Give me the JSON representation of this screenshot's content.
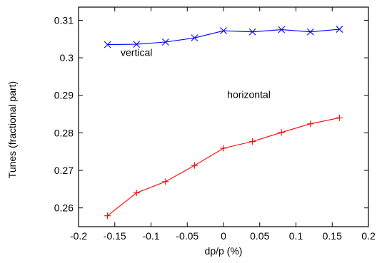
{
  "chart_data": {
    "type": "line",
    "title": "",
    "xlabel": "dp/p (%)",
    "ylabel": "Tunes (fractional part)",
    "xlim": [
      -0.2,
      0.2
    ],
    "ylim": [
      0.255,
      0.3135
    ],
    "grid": false,
    "x_ticks": [
      -0.2,
      -0.15,
      -0.1,
      -0.05,
      0,
      0.05,
      0.1,
      0.15,
      0.2
    ],
    "x_tick_labels": [
      "-0.2",
      "-0.15",
      "-0.1",
      "-0.05",
      "0",
      "0.05",
      "0.1",
      "0.15",
      "0.2"
    ],
    "y_ticks": [
      0.26,
      0.27,
      0.28,
      0.29,
      0.3,
      0.31
    ],
    "y_tick_labels": [
      "0.26",
      "0.27",
      "0.28",
      "0.29",
      "0.3",
      "0.31"
    ],
    "series": [
      {
        "name": "vertical",
        "color": "#0000ff",
        "marker": "x",
        "label_at": [
          -0.12,
          0.3005
        ],
        "x": [
          -0.16,
          -0.12,
          -0.08,
          -0.04,
          0,
          0.04,
          0.08,
          0.12,
          0.16
        ],
        "y": [
          0.3035,
          0.3036,
          0.3042,
          0.3053,
          0.3072,
          0.3069,
          0.3075,
          0.3069,
          0.3076
        ]
      },
      {
        "name": "horizontal",
        "color": "#ff0000",
        "marker": "+",
        "label_at": [
          0.035,
          0.2893
        ],
        "x": [
          -0.16,
          -0.12,
          -0.08,
          -0.04,
          0,
          0.04,
          0.08,
          0.12,
          0.16
        ],
        "y": [
          0.2579,
          0.264,
          0.267,
          0.2713,
          0.2759,
          0.2777,
          0.2801,
          0.2824,
          0.284
        ]
      }
    ]
  }
}
